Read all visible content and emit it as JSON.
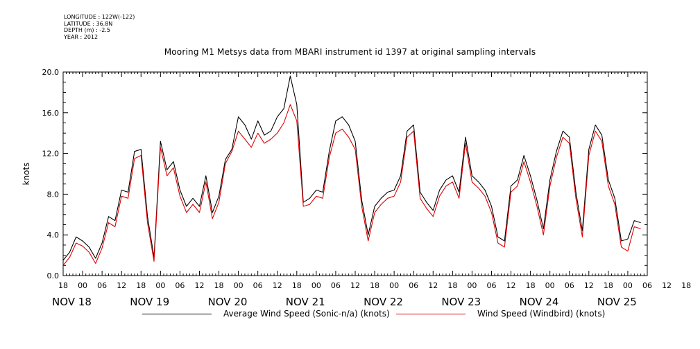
{
  "meta": {
    "longitude": "LONGITUDE : 122W(-122)",
    "latitude": "LATITUDE : 36.8N",
    "depth": "DEPTH (m) : -2.5",
    "year": "YEAR : 2012"
  },
  "chart_data": {
    "type": "line",
    "title": "Mooring M1 Metsys data from MBARI instrument id 1397 at original sampling intervals",
    "ylabel": "knots",
    "xlabel": "",
    "ylim": [
      0,
      20
    ],
    "yticks": [
      "0.0",
      "4.0",
      "8.0",
      "12.0",
      "16.0",
      "20.0"
    ],
    "xlim_hours": [
      -6,
      174
    ],
    "x_unit": "hours after 2012-11-18 00:00",
    "hour_tick_labels": [
      "18",
      "00",
      "06",
      "12",
      "18",
      "00",
      "06",
      "12",
      "18",
      "00",
      "06",
      "12",
      "18",
      "00",
      "06",
      "12",
      "18",
      "00",
      "06",
      "12",
      "18",
      "00",
      "06",
      "12",
      "18",
      "00",
      "06",
      "12",
      "18",
      "00",
      "06",
      "12",
      "18"
    ],
    "day_labels": [
      "NOV 18",
      "NOV 19",
      "NOV 20",
      "NOV 21",
      "NOV 22",
      "NOV 23",
      "NOV 24",
      "NOV 25"
    ],
    "grid": false,
    "legend_position": "bottom",
    "series": [
      {
        "name": "Average Wind Speed (Sonic-n/a) (knots)",
        "color": "#000000",
        "x": [
          -6,
          -4,
          -2,
          0,
          2,
          4,
          6,
          8,
          10,
          12,
          14,
          16,
          18,
          20,
          22,
          24,
          26,
          28,
          30,
          32,
          34,
          36,
          38,
          40,
          42,
          44,
          46,
          48,
          50,
          52,
          54,
          56,
          58,
          60,
          62,
          64,
          66,
          68,
          70,
          72,
          74,
          76,
          78,
          80,
          82,
          84,
          86,
          88,
          90,
          92,
          94,
          96,
          98,
          100,
          102,
          104,
          106,
          108,
          110,
          112,
          114,
          116,
          118,
          120,
          122,
          124,
          126,
          128,
          130,
          132,
          134,
          136,
          138,
          140,
          142,
          144,
          146,
          148,
          150,
          152,
          154,
          156,
          158,
          160,
          162,
          164,
          166,
          168,
          170,
          172
        ],
        "y": [
          1.5,
          2.3,
          3.8,
          3.4,
          2.8,
          1.7,
          3.2,
          5.8,
          5.4,
          8.4,
          8.2,
          12.2,
          12.4,
          5.8,
          1.8,
          13.2,
          10.4,
          11.2,
          8.4,
          6.8,
          7.6,
          6.8,
          9.8,
          6.2,
          7.8,
          11.4,
          12.4,
          15.6,
          14.8,
          13.4,
          15.2,
          13.8,
          14.2,
          15.6,
          16.4,
          19.6,
          16.8,
          7.2,
          7.6,
          8.4,
          8.2,
          12.2,
          15.2,
          15.6,
          14.8,
          13.2,
          7.4,
          4.0,
          6.8,
          7.6,
          8.2,
          8.4,
          9.8,
          14.2,
          14.8,
          8.2,
          7.2,
          6.4,
          8.4,
          9.4,
          9.8,
          8.2,
          13.6,
          9.8,
          9.2,
          8.4,
          6.8,
          3.8,
          3.4,
          8.8,
          9.4,
          11.8,
          9.8,
          7.4,
          4.6,
          9.4,
          12.2,
          14.2,
          13.6,
          8.2,
          4.4,
          12.4,
          14.8,
          13.8,
          9.4,
          7.6,
          3.4,
          3.6,
          5.4,
          5.2
        ],
        "values_note": "approximate readings; original sampling shows high-frequency variability"
      },
      {
        "name": "Wind Speed (Windbird) (knots)",
        "color": "#e00000",
        "x": [
          -6,
          -4,
          -2,
          0,
          2,
          4,
          6,
          8,
          10,
          12,
          14,
          16,
          18,
          20,
          22,
          24,
          26,
          28,
          30,
          32,
          34,
          36,
          38,
          40,
          42,
          44,
          46,
          48,
          50,
          52,
          54,
          56,
          58,
          60,
          62,
          64,
          66,
          68,
          70,
          72,
          74,
          76,
          78,
          80,
          82,
          84,
          86,
          88,
          90,
          92,
          94,
          96,
          98,
          100,
          102,
          104,
          106,
          108,
          110,
          112,
          114,
          116,
          118,
          120,
          122,
          124,
          126,
          128,
          130,
          132,
          134,
          136,
          138,
          140,
          142,
          144,
          146,
          148,
          150,
          152,
          154,
          156,
          158,
          160,
          162,
          164,
          166,
          168,
          170,
          172
        ],
        "y": [
          1.0,
          1.8,
          3.2,
          2.9,
          2.3,
          1.2,
          2.7,
          5.2,
          4.8,
          7.8,
          7.6,
          11.5,
          11.8,
          5.2,
          1.4,
          12.6,
          9.8,
          10.6,
          7.8,
          6.2,
          7.0,
          6.2,
          9.2,
          5.6,
          7.2,
          11.0,
          12.2,
          14.2,
          13.4,
          12.6,
          14.0,
          13.0,
          13.4,
          14.0,
          15.0,
          16.8,
          15.2,
          6.8,
          7.0,
          7.8,
          7.6,
          11.6,
          14.0,
          14.4,
          13.6,
          12.4,
          6.8,
          3.4,
          6.2,
          7.0,
          7.6,
          7.8,
          9.2,
          13.6,
          14.2,
          7.6,
          6.6,
          5.8,
          7.8,
          8.8,
          9.2,
          7.6,
          13.0,
          9.2,
          8.6,
          7.8,
          6.2,
          3.2,
          2.8,
          8.2,
          8.8,
          11.2,
          9.2,
          6.8,
          4.0,
          8.8,
          11.6,
          13.6,
          13.0,
          7.6,
          3.8,
          11.8,
          14.2,
          13.2,
          8.8,
          7.0,
          2.8,
          2.4,
          4.8,
          4.6
        ]
      }
    ]
  }
}
